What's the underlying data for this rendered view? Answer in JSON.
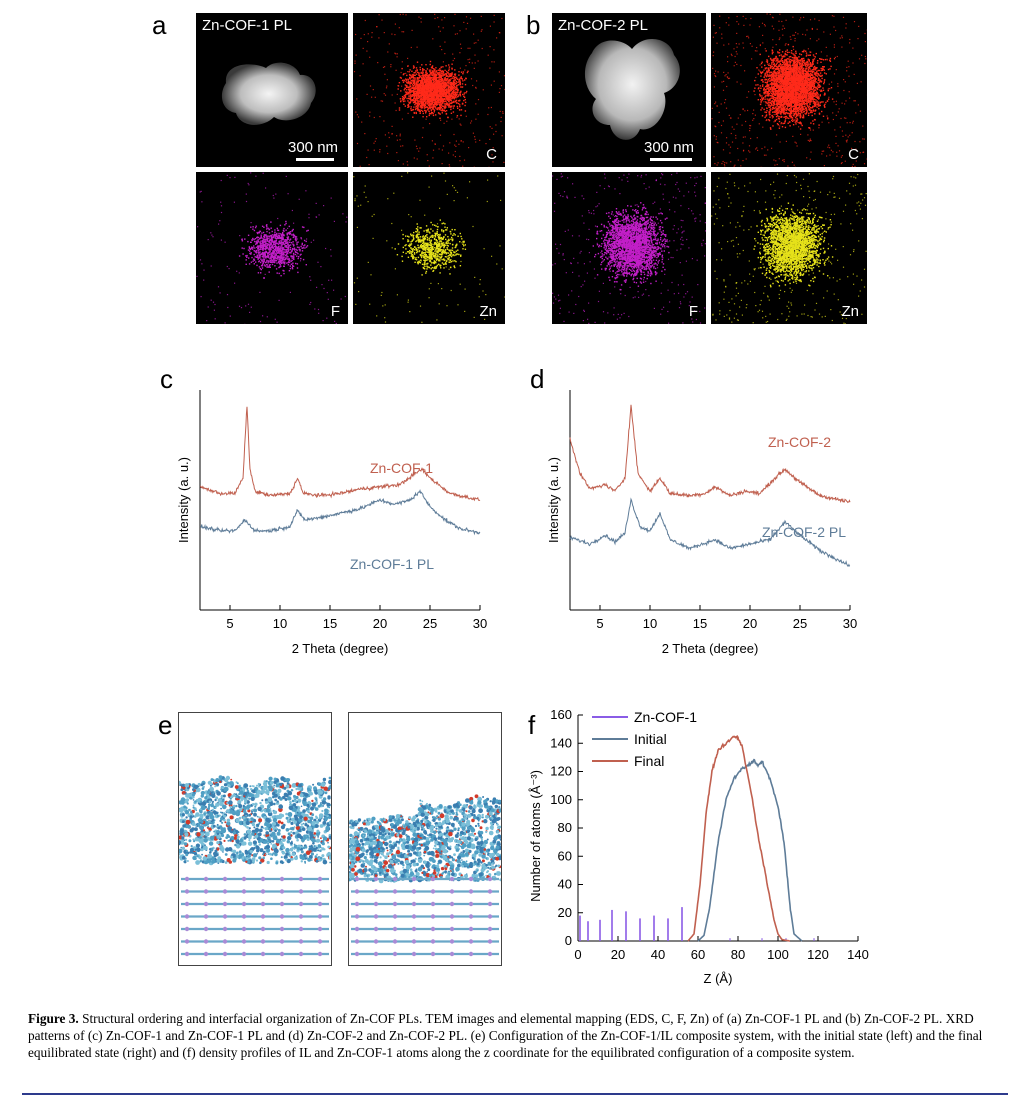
{
  "panels": {
    "a": "a",
    "b": "b",
    "c": "c",
    "d": "d",
    "e": "e",
    "f": "f"
  },
  "tem": {
    "a_title": "Zn-COF-1 PL",
    "b_title": "Zn-COF-2 PL",
    "scale_a": "300 nm",
    "scale_b": "300 nm",
    "labels": {
      "c": "C",
      "f": "F",
      "zn": "Zn"
    },
    "colors": {
      "carbon": "#ff2a1a",
      "fluorine": "#c21fc8",
      "zinc": "#e6e21a"
    }
  },
  "chart_data": [
    {
      "id": "c",
      "type": "line",
      "xlabel": "2 Theta (degree)",
      "ylabel": "Intensity (a. u.)",
      "xlim": [
        2,
        30
      ],
      "xticks": [
        5,
        10,
        15,
        20,
        25,
        30
      ],
      "series": [
        {
          "name": "Zn-COF-1",
          "color": "#c0604f",
          "x": [
            2,
            4,
            5.5,
            6.3,
            6.7,
            7.0,
            7.5,
            9,
            11,
            11.8,
            12.3,
            14,
            16,
            18,
            20,
            22,
            23.5,
            24.2,
            25,
            27,
            30
          ],
          "y": [
            0.56,
            0.53,
            0.53,
            0.6,
            0.93,
            0.64,
            0.54,
            0.52,
            0.53,
            0.6,
            0.53,
            0.52,
            0.53,
            0.55,
            0.56,
            0.57,
            0.62,
            0.64,
            0.6,
            0.53,
            0.5
          ]
        },
        {
          "name": "Zn-COF-1 PL",
          "color": "#5e7c98",
          "x": [
            2,
            4,
            5.5,
            6.5,
            7.5,
            9,
            11,
            11.7,
            12.5,
            14,
            16,
            18,
            20,
            21.5,
            23,
            24,
            25,
            26.5,
            28,
            30
          ],
          "y": [
            0.38,
            0.36,
            0.36,
            0.41,
            0.36,
            0.36,
            0.38,
            0.45,
            0.41,
            0.42,
            0.44,
            0.46,
            0.5,
            0.48,
            0.5,
            0.54,
            0.47,
            0.41,
            0.37,
            0.35
          ]
        }
      ],
      "annotations": [
        "Zn-COF-1",
        "Zn-COF-1 PL"
      ]
    },
    {
      "id": "d",
      "type": "line",
      "xlabel": "2 Theta (degree)",
      "ylabel": "Intensity (a. u.)",
      "xlim": [
        2,
        30
      ],
      "xticks": [
        5,
        10,
        15,
        20,
        25,
        30
      ],
      "series": [
        {
          "name": "Zn-COF-2",
          "color": "#c0604f",
          "x": [
            2,
            3,
            4,
            5.5,
            6.5,
            7.5,
            8.1,
            8.8,
            10,
            11,
            12,
            14,
            15.5,
            16.5,
            18,
            19.5,
            21,
            22.5,
            23.5,
            25,
            27,
            30
          ],
          "y": [
            0.78,
            0.62,
            0.55,
            0.57,
            0.54,
            0.6,
            0.93,
            0.62,
            0.54,
            0.6,
            0.53,
            0.52,
            0.53,
            0.56,
            0.52,
            0.54,
            0.53,
            0.6,
            0.64,
            0.58,
            0.52,
            0.49
          ]
        },
        {
          "name": "Zn-COF-2 PL",
          "color": "#5e7c98",
          "x": [
            2,
            4,
            5.5,
            6.5,
            7.5,
            8.1,
            9,
            10,
            11,
            12,
            14,
            16.5,
            18,
            20,
            22,
            23.5,
            25,
            27,
            30
          ],
          "y": [
            0.33,
            0.3,
            0.34,
            0.31,
            0.35,
            0.5,
            0.38,
            0.36,
            0.44,
            0.32,
            0.28,
            0.32,
            0.28,
            0.3,
            0.32,
            0.4,
            0.34,
            0.27,
            0.2
          ]
        }
      ],
      "annotations": [
        "Zn-COF-2",
        "Zn-COF-2 PL"
      ]
    },
    {
      "id": "f",
      "type": "line",
      "xlabel": "Z (Å)",
      "ylabel": "Number of atoms (Å⁻³)",
      "xlim": [
        0,
        140
      ],
      "ylim": [
        0,
        160
      ],
      "xticks": [
        0,
        20,
        40,
        60,
        80,
        100,
        120,
        140
      ],
      "yticks": [
        0,
        20,
        40,
        60,
        80,
        100,
        120,
        140,
        160
      ],
      "series": [
        {
          "name": "Zn-COF-1",
          "color": "#8a5ce6",
          "spikes_x": [
            1,
            5,
            11,
            17,
            24,
            31,
            38,
            45,
            52
          ],
          "spikes_y": [
            18,
            14,
            15,
            22,
            21,
            16,
            18,
            16,
            24
          ]
        },
        {
          "name": "Initial",
          "color": "#5e7c98",
          "x": [
            60,
            63,
            66,
            70,
            74,
            78,
            82,
            86,
            88,
            90,
            92,
            96,
            100,
            103,
            106,
            108,
            112
          ],
          "y": [
            0,
            4,
            25,
            70,
            100,
            115,
            122,
            125,
            128,
            124,
            127,
            115,
            95,
            70,
            25,
            5,
            0
          ]
        },
        {
          "name": "Final",
          "color": "#c0604f",
          "x": [
            55,
            58,
            61,
            64,
            67,
            70,
            74,
            78,
            80,
            82,
            86,
            90,
            94,
            98,
            100,
            102,
            106
          ],
          "y": [
            0,
            5,
            40,
            90,
            120,
            135,
            140,
            145,
            144,
            138,
            110,
            75,
            45,
            15,
            5,
            1,
            0
          ]
        }
      ],
      "legend": [
        "Zn-COF-1",
        "Initial",
        "Final"
      ]
    }
  ],
  "caption": {
    "label": "Figure 3.",
    "text": "Structural ordering and interfacial organization of Zn-COF PLs. TEM images and elemental mapping (EDS, C, F, Zn) of (a) Zn-COF-1 PL and (b) Zn-COF-2 PL. XRD patterns of (c) Zn-COF-1 and Zn-COF-1 PL and (d) Zn-COF-2 and Zn-COF-2 PL. (e) Configuration of the Zn-COF-1/IL composite system, with the initial state (left) and the final equilibrated state (right) and (f) density profiles of IL and Zn-COF-1 atoms along the z coordinate for the equilibrated configuration of a composite system."
  }
}
